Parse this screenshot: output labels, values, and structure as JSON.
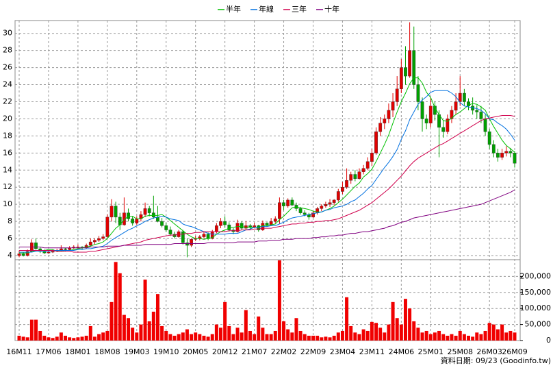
{
  "chart_data": {
    "type": "candlestick",
    "footnote": "資料日期: 09/23 (Goodinfo.tw)",
    "categories": [
      "16M11",
      null,
      null,
      null,
      null,
      null,
      null,
      "17M06",
      null,
      null,
      null,
      null,
      null,
      null,
      "18M01",
      null,
      null,
      null,
      null,
      null,
      null,
      "18M08",
      null,
      null,
      null,
      null,
      null,
      null,
      "19M03",
      null,
      null,
      null,
      null,
      null,
      null,
      "19M10",
      null,
      null,
      null,
      null,
      null,
      null,
      "20M05",
      null,
      null,
      null,
      null,
      null,
      null,
      "20M12",
      null,
      null,
      null,
      null,
      null,
      null,
      "21M07",
      null,
      null,
      null,
      null,
      null,
      null,
      "22M02",
      null,
      null,
      null,
      null,
      null,
      null,
      "22M09",
      null,
      null,
      null,
      null,
      null,
      null,
      "23M04",
      null,
      null,
      null,
      null,
      null,
      null,
      "23M11",
      null,
      null,
      null,
      null,
      null,
      null,
      "24M06",
      null,
      null,
      null,
      null,
      null,
      null,
      "25M01",
      null,
      null,
      null,
      null,
      null,
      null,
      "25M08",
      null,
      null,
      null,
      null,
      null,
      null,
      "26M03",
      null,
      null,
      null,
      null,
      null,
      "26M09"
    ],
    "ohlc": [
      [
        4.0,
        4.6,
        3.8,
        4.2
      ],
      [
        4.2,
        4.4,
        3.9,
        4.0
      ],
      [
        4.0,
        4.7,
        3.9,
        4.5
      ],
      [
        4.5,
        5.9,
        4.4,
        5.5
      ],
      [
        5.5,
        6.0,
        4.7,
        4.8
      ],
      [
        4.8,
        5.0,
        4.3,
        4.5
      ],
      [
        4.5,
        4.7,
        4.2,
        4.3
      ],
      [
        4.3,
        4.6,
        4.2,
        4.4
      ],
      [
        4.4,
        4.7,
        4.3,
        4.5
      ],
      [
        4.5,
        4.8,
        4.4,
        4.6
      ],
      [
        4.6,
        5.2,
        4.5,
        4.8
      ],
      [
        4.8,
        4.9,
        4.5,
        4.7
      ],
      [
        4.7,
        5.1,
        4.6,
        4.9
      ],
      [
        4.9,
        5.2,
        4.8,
        5.0
      ],
      [
        5.0,
        5.3,
        4.8,
        5.0
      ],
      [
        5.0,
        5.1,
        4.7,
        4.9
      ],
      [
        4.9,
        5.4,
        4.8,
        5.2
      ],
      [
        5.2,
        6.0,
        5.1,
        5.6
      ],
      [
        5.6,
        6.0,
        5.3,
        5.8
      ],
      [
        5.8,
        6.3,
        5.6,
        6.0
      ],
      [
        6.0,
        6.5,
        5.8,
        6.2
      ],
      [
        6.2,
        8.8,
        6.1,
        8.5
      ],
      [
        8.5,
        10.6,
        8.0,
        9.8
      ],
      [
        9.8,
        10.3,
        7.8,
        8.5
      ],
      [
        8.5,
        9.0,
        7.0,
        7.6
      ],
      [
        7.6,
        10.8,
        7.5,
        9.0
      ],
      [
        9.0,
        9.5,
        8.0,
        8.3
      ],
      [
        8.3,
        8.6,
        7.5,
        7.8
      ],
      [
        7.8,
        8.6,
        7.6,
        8.3
      ],
      [
        8.3,
        9.2,
        8.0,
        8.8
      ],
      [
        8.8,
        10.2,
        8.5,
        9.5
      ],
      [
        9.5,
        9.8,
        8.6,
        9.0
      ],
      [
        9.0,
        11.0,
        8.3,
        8.5
      ],
      [
        8.5,
        9.8,
        7.9,
        8.0
      ],
      [
        8.0,
        8.4,
        7.3,
        7.5
      ],
      [
        7.5,
        7.8,
        6.8,
        7.0
      ],
      [
        7.0,
        7.4,
        6.3,
        6.5
      ],
      [
        6.5,
        6.8,
        6.0,
        6.2
      ],
      [
        6.2,
        7.0,
        6.1,
        6.8
      ],
      [
        6.8,
        7.0,
        5.3,
        5.5
      ],
      [
        5.5,
        6.0,
        3.8,
        5.2
      ],
      [
        5.2,
        6.0,
        5.0,
        5.9
      ],
      [
        5.9,
        6.3,
        5.7,
        6.0
      ],
      [
        6.0,
        6.4,
        5.8,
        6.2
      ],
      [
        6.2,
        6.8,
        6.0,
        6.5
      ],
      [
        6.5,
        6.7,
        5.8,
        6.0
      ],
      [
        6.0,
        7.0,
        5.9,
        6.8
      ],
      [
        6.8,
        7.8,
        6.6,
        7.5
      ],
      [
        7.5,
        8.4,
        7.2,
        8.0
      ],
      [
        8.0,
        8.6,
        7.3,
        7.6
      ],
      [
        7.6,
        7.9,
        6.8,
        7.0
      ],
      [
        7.0,
        7.2,
        6.5,
        6.8
      ],
      [
        6.8,
        8.2,
        6.7,
        7.8
      ],
      [
        7.8,
        8.0,
        7.0,
        7.2
      ],
      [
        7.2,
        8.0,
        7.0,
        7.5
      ],
      [
        7.5,
        7.7,
        7.0,
        7.3
      ],
      [
        7.3,
        7.8,
        7.2,
        7.5
      ],
      [
        7.5,
        7.6,
        6.8,
        7.0
      ],
      [
        7.0,
        8.1,
        6.9,
        7.8
      ],
      [
        7.8,
        7.9,
        7.4,
        7.6
      ],
      [
        7.6,
        8.4,
        7.5,
        8.0
      ],
      [
        8.0,
        8.6,
        7.8,
        8.3
      ],
      [
        8.3,
        10.8,
        7.7,
        10.2
      ],
      [
        10.2,
        10.5,
        9.3,
        9.8
      ],
      [
        9.8,
        10.7,
        9.6,
        10.5
      ],
      [
        10.5,
        10.8,
        9.8,
        9.9
      ],
      [
        9.9,
        10.2,
        9.2,
        9.5
      ],
      [
        9.5,
        9.7,
        8.8,
        9.0
      ],
      [
        9.0,
        9.3,
        8.6,
        8.8
      ],
      [
        8.8,
        9.0,
        8.2,
        8.5
      ],
      [
        8.5,
        9.2,
        8.4,
        9.0
      ],
      [
        9.0,
        9.7,
        8.8,
        9.5
      ],
      [
        9.5,
        10.0,
        9.2,
        9.8
      ],
      [
        9.8,
        10.3,
        9.6,
        10.0
      ],
      [
        10.0,
        10.6,
        9.7,
        10.2
      ],
      [
        10.2,
        10.6,
        9.9,
        10.5
      ],
      [
        10.5,
        11.8,
        10.3,
        11.5
      ],
      [
        11.5,
        12.6,
        11.2,
        12.0
      ],
      [
        12.0,
        14.2,
        11.8,
        12.8
      ],
      [
        12.8,
        13.8,
        12.4,
        13.5
      ],
      [
        13.5,
        14.0,
        12.7,
        13.0
      ],
      [
        13.0,
        14.2,
        12.9,
        13.8
      ],
      [
        13.8,
        14.6,
        13.5,
        14.2
      ],
      [
        14.2,
        15.5,
        14.0,
        15.0
      ],
      [
        15.0,
        16.5,
        14.5,
        16.0
      ],
      [
        16.0,
        19.0,
        15.8,
        18.5
      ],
      [
        18.5,
        20.2,
        18.0,
        19.5
      ],
      [
        19.5,
        20.5,
        18.8,
        20.0
      ],
      [
        20.0,
        21.8,
        19.5,
        21.0
      ],
      [
        21.0,
        23.0,
        20.2,
        22.0
      ],
      [
        22.0,
        25.0,
        21.5,
        23.5
      ],
      [
        23.5,
        27.0,
        23.0,
        26.0
      ],
      [
        26.0,
        28.5,
        24.0,
        25.0
      ],
      [
        25.0,
        31.3,
        24.8,
        28.0
      ],
      [
        28.0,
        30.8,
        23.5,
        24.0
      ],
      [
        24.0,
        25.0,
        21.0,
        22.0
      ],
      [
        22.0,
        22.5,
        18.5,
        20.0
      ],
      [
        20.0,
        20.5,
        18.8,
        19.5
      ],
      [
        19.5,
        22.5,
        19.0,
        21.5
      ],
      [
        21.5,
        22.0,
        19.8,
        20.5
      ],
      [
        20.5,
        21.0,
        15.5,
        19.0
      ],
      [
        19.0,
        19.8,
        17.8,
        18.5
      ],
      [
        18.5,
        20.5,
        18.2,
        20.0
      ],
      [
        20.0,
        21.5,
        19.5,
        21.0
      ],
      [
        21.0,
        23.0,
        20.5,
        22.0
      ],
      [
        22.0,
        25.0,
        21.5,
        23.0
      ],
      [
        23.0,
        23.5,
        21.5,
        22.0
      ],
      [
        22.0,
        22.4,
        21.0,
        21.5
      ],
      [
        21.5,
        22.5,
        20.5,
        21.0
      ],
      [
        21.0,
        21.6,
        20.0,
        20.8
      ],
      [
        20.8,
        21.5,
        19.5,
        20.0
      ],
      [
        20.0,
        20.5,
        18.0,
        18.5
      ],
      [
        18.5,
        18.8,
        16.5,
        17.0
      ],
      [
        17.0,
        17.5,
        15.5,
        16.0
      ],
      [
        16.0,
        16.5,
        15.0,
        15.5
      ],
      [
        15.5,
        16.5,
        15.2,
        16.0
      ],
      [
        16.0,
        16.8,
        15.6,
        16.2
      ],
      [
        16.2,
        16.6,
        15.5,
        16.0
      ],
      [
        16.0,
        16.2,
        14.3,
        14.8
      ]
    ],
    "up_color": "#e00000",
    "down_color": "#00a000",
    "volume": [
      15000,
      12000,
      10000,
      65000,
      65000,
      30000,
      15000,
      10000,
      8000,
      12000,
      25000,
      15000,
      10000,
      8000,
      10000,
      12000,
      15000,
      45000,
      12000,
      20000,
      25000,
      30000,
      120000,
      245000,
      210000,
      80000,
      70000,
      40000,
      25000,
      50000,
      190000,
      60000,
      90000,
      145000,
      45000,
      30000,
      20000,
      15000,
      20000,
      25000,
      35000,
      20000,
      25000,
      20000,
      15000,
      12000,
      20000,
      50000,
      40000,
      120000,
      45000,
      20000,
      40000,
      25000,
      95000,
      30000,
      20000,
      75000,
      40000,
      20000,
      20000,
      30000,
      250000,
      60000,
      35000,
      25000,
      70000,
      30000,
      20000,
      15000,
      15000,
      15000,
      10000,
      12000,
      10000,
      15000,
      25000,
      30000,
      135000,
      45000,
      25000,
      20000,
      35000,
      30000,
      58000,
      55000,
      40000,
      25000,
      50000,
      120000,
      70000,
      50000,
      130000,
      100000,
      60000,
      40000,
      25000,
      30000,
      20000,
      25000,
      30000,
      20000,
      15000,
      20000,
      15000,
      30000,
      20000,
      15000,
      12000,
      25000,
      20000,
      30000,
      55000,
      50000,
      35000,
      50000,
      25000,
      30000,
      25000
    ],
    "volume_color": "#f00000",
    "series": [
      {
        "name": "半年",
        "color": "#00c000",
        "values": [
          4.3,
          4.3,
          4.3,
          4.5,
          4.6,
          4.6,
          4.6,
          4.7,
          4.7,
          4.5,
          4.5,
          4.6,
          4.6,
          4.7,
          4.8,
          4.9,
          5.0,
          5.1,
          5.3,
          5.4,
          5.6,
          6.0,
          6.6,
          7.2,
          7.6,
          8.2,
          8.6,
          8.6,
          8.3,
          8.3,
          8.6,
          8.7,
          8.7,
          8.7,
          8.8,
          8.5,
          8.1,
          7.7,
          7.3,
          6.9,
          6.5,
          6.2,
          6.0,
          6.0,
          5.9,
          6.0,
          6.1,
          6.5,
          6.8,
          7.0,
          7.2,
          7.3,
          7.4,
          7.4,
          7.3,
          7.3,
          7.3,
          7.3,
          7.5,
          7.5,
          7.6,
          7.7,
          8.2,
          8.6,
          9.1,
          9.6,
          9.7,
          9.6,
          9.5,
          9.4,
          9.2,
          9.1,
          9.1,
          9.3,
          9.5,
          9.8,
          10.2,
          10.6,
          11.1,
          11.6,
          12.1,
          12.5,
          13.2,
          13.6,
          14.1,
          15.0,
          16.0,
          17.0,
          18.1,
          19.5,
          20.8,
          22.0,
          23.0,
          24.1,
          24.8,
          24.8,
          24.2,
          23.1,
          22.5,
          21.3,
          20.5,
          19.8,
          19.7,
          20.1,
          20.5,
          20.8,
          21.2,
          21.6,
          21.8,
          21.7,
          21.4,
          21.0,
          20.0,
          19.1,
          18.3,
          17.5,
          16.9,
          16.5,
          16.1
        ]
      },
      {
        "name": "年線",
        "color": "#0070e0",
        "values": [
          4.4,
          4.4,
          4.4,
          4.4,
          4.5,
          4.5,
          4.5,
          4.5,
          4.6,
          4.6,
          4.6,
          4.6,
          4.6,
          4.6,
          4.7,
          4.7,
          4.8,
          4.8,
          4.9,
          5.0,
          5.1,
          5.4,
          5.8,
          6.1,
          6.4,
          6.7,
          7.0,
          7.2,
          7.5,
          7.7,
          8.0,
          8.2,
          8.4,
          8.5,
          8.6,
          8.5,
          8.3,
          8.2,
          8.1,
          7.7,
          7.5,
          7.4,
          7.2,
          7.0,
          6.8,
          6.6,
          6.5,
          6.5,
          6.5,
          6.5,
          6.6,
          6.6,
          6.6,
          6.8,
          7.0,
          7.1,
          7.3,
          7.3,
          7.4,
          7.4,
          7.5,
          7.5,
          7.7,
          7.9,
          8.2,
          8.4,
          8.5,
          8.6,
          8.7,
          8.8,
          8.9,
          9.0,
          9.1,
          9.3,
          9.4,
          9.6,
          9.7,
          9.8,
          10.0,
          10.3,
          10.5,
          10.9,
          11.3,
          11.8,
          12.2,
          12.9,
          13.6,
          14.3,
          14.9,
          15.6,
          16.4,
          17.6,
          18.6,
          19.9,
          20.8,
          21.7,
          22.2,
          22.6,
          23.1,
          23.3,
          23.3,
          23.3,
          23.3,
          23.0,
          22.6,
          21.9,
          21.5,
          21.4,
          21.3,
          21.2,
          21.0,
          20.6,
          20.0,
          19.9,
          19.5,
          19.2,
          18.8,
          18.2,
          17.5
        ]
      },
      {
        "name": "三年",
        "color": "#d0004c",
        "values": [
          4.6,
          4.6,
          4.6,
          4.6,
          4.6,
          4.6,
          4.6,
          4.6,
          4.6,
          4.5,
          4.5,
          4.5,
          4.5,
          4.4,
          4.4,
          4.4,
          4.4,
          4.5,
          4.5,
          4.6,
          4.7,
          4.8,
          4.9,
          5.0,
          5.1,
          5.2,
          5.3,
          5.4,
          5.5,
          5.6,
          5.8,
          5.9,
          6.0,
          6.1,
          6.2,
          6.3,
          6.4,
          6.4,
          6.5,
          6.5,
          6.6,
          6.6,
          6.7,
          6.7,
          6.8,
          6.8,
          6.8,
          6.8,
          6.8,
          6.8,
          6.9,
          6.9,
          6.9,
          7.0,
          7.0,
          7.0,
          7.1,
          7.1,
          7.2,
          7.2,
          7.2,
          7.3,
          7.4,
          7.5,
          7.6,
          7.7,
          7.7,
          7.8,
          7.8,
          7.9,
          7.9,
          8.0,
          8.0,
          8.1,
          8.1,
          8.2,
          8.3,
          8.5,
          8.7,
          8.9,
          9.1,
          9.3,
          9.6,
          9.9,
          10.2,
          10.6,
          11.0,
          11.4,
          11.8,
          12.3,
          12.8,
          13.3,
          13.9,
          14.5,
          15.0,
          15.4,
          15.7,
          16.0,
          16.3,
          16.6,
          16.9,
          17.1,
          17.4,
          17.7,
          18.0,
          18.3,
          18.6,
          18.9,
          19.2,
          19.5,
          19.8,
          20.0,
          20.1,
          20.2,
          20.3,
          20.4,
          20.4,
          20.4,
          20.3
        ]
      },
      {
        "name": "十年",
        "color": "#800080",
        "values": [
          5.0,
          5.0,
          5.0,
          5.0,
          5.0,
          5.0,
          4.9,
          4.9,
          4.9,
          4.9,
          4.9,
          4.9,
          4.9,
          4.9,
          4.9,
          4.9,
          4.9,
          5.0,
          5.0,
          5.0,
          5.0,
          5.1,
          5.1,
          5.1,
          5.1,
          5.2,
          5.2,
          5.2,
          5.2,
          5.2,
          5.3,
          5.3,
          5.3,
          5.3,
          5.3,
          5.3,
          5.3,
          5.4,
          5.4,
          5.4,
          5.4,
          5.4,
          5.4,
          5.4,
          5.4,
          5.5,
          5.5,
          5.5,
          5.5,
          5.5,
          5.5,
          5.5,
          5.6,
          5.6,
          5.6,
          5.6,
          5.6,
          5.7,
          5.7,
          5.7,
          5.8,
          5.8,
          5.8,
          5.9,
          5.9,
          5.9,
          6.0,
          6.0,
          6.0,
          6.0,
          6.1,
          6.1,
          6.2,
          6.2,
          6.3,
          6.3,
          6.4,
          6.4,
          6.5,
          6.6,
          6.6,
          6.7,
          6.8,
          6.8,
          6.9,
          7.0,
          7.1,
          7.2,
          7.4,
          7.5,
          7.7,
          7.9,
          8.0,
          8.2,
          8.4,
          8.5,
          8.6,
          8.7,
          8.8,
          8.9,
          9.0,
          9.1,
          9.2,
          9.3,
          9.4,
          9.5,
          9.6,
          9.7,
          9.8,
          9.9,
          10.0,
          10.2,
          10.4,
          10.6,
          10.8,
          11.0,
          11.2,
          11.4,
          11.7
        ]
      }
    ],
    "ylim": [
      3.6,
      31.5
    ],
    "yticks": [
      4,
      6,
      8,
      10,
      12,
      14,
      16,
      18,
      20,
      22,
      24,
      26,
      28,
      30
    ],
    "y2lim": [
      0,
      250000
    ],
    "y2ticks": [
      0,
      {
        "value": 50000,
        "label": "50,000"
      },
      {
        "value": 100000,
        "label": "100,000"
      },
      {
        "value": 150000,
        "label": "150,000"
      },
      {
        "value": 200000,
        "label": "200,000"
      }
    ],
    "grid": true,
    "legend": "top"
  }
}
